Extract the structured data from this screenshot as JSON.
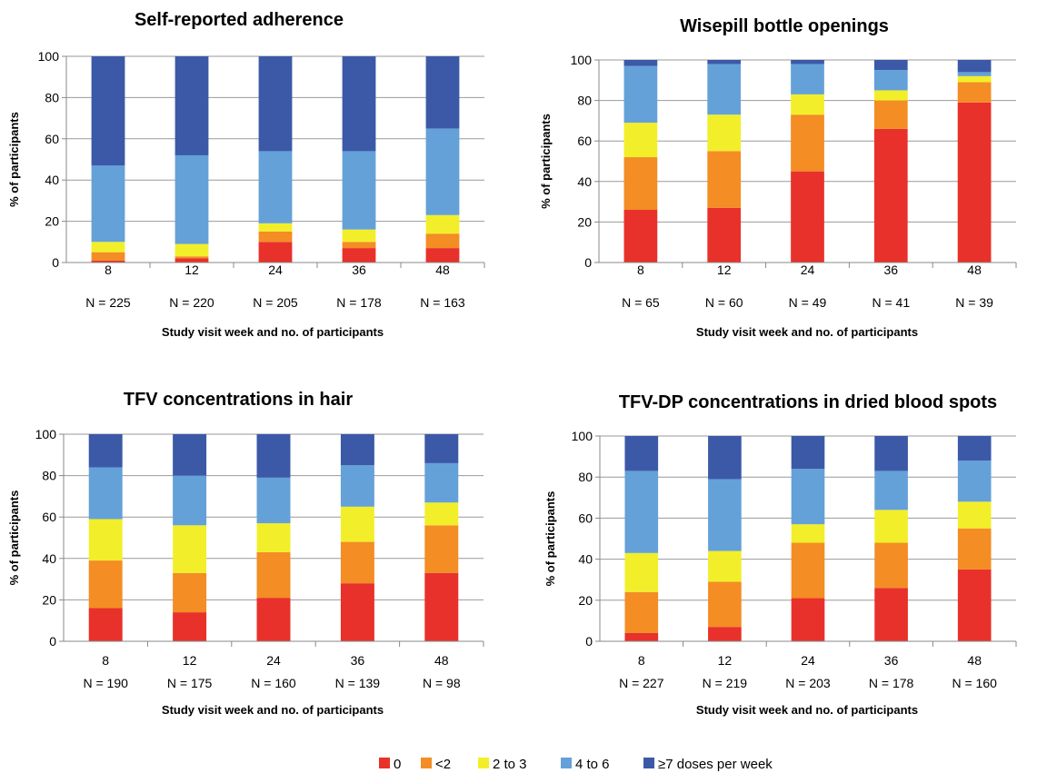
{
  "colors": {
    "0": "#e8312a",
    "<2": "#f38d24",
    "2 to 3": "#f2ef2a",
    "4 to 6": "#64a1d8",
    "≥7 doses per week": "#3c59a8"
  },
  "legend": [
    "0",
    "<2",
    "2 to 3",
    "4 to 6",
    "≥7 doses per week"
  ],
  "chart_data": [
    {
      "type": "bar",
      "stacked": true,
      "title": "Self-reported adherence",
      "xlabel": "Study visit week and no. of participants",
      "ylabel": "% of participants",
      "ylim": [
        0,
        100
      ],
      "yticks": [
        0,
        20,
        40,
        60,
        80,
        100
      ],
      "categories": [
        "8",
        "12",
        "24",
        "36",
        "48"
      ],
      "n_labels": [
        "N = 225",
        "N = 220",
        "N = 205",
        "N = 178",
        "N = 163"
      ],
      "series": [
        {
          "name": "0",
          "values": [
            1,
            2,
            10,
            7,
            7
          ]
        },
        {
          "name": "<2",
          "values": [
            4,
            1,
            5,
            3,
            7
          ]
        },
        {
          "name": "2 to 3",
          "values": [
            5,
            6,
            4,
            6,
            9
          ]
        },
        {
          "name": "4 to 6",
          "values": [
            37,
            43,
            35,
            38,
            42
          ]
        },
        {
          "name": "≥7 doses per week",
          "values": [
            53,
            48,
            46,
            46,
            35
          ]
        }
      ]
    },
    {
      "type": "bar",
      "stacked": true,
      "title": "Wisepill bottle openings",
      "xlabel": "Study visit week and no. of participants",
      "ylabel": "% of participants",
      "ylim": [
        0,
        100
      ],
      "yticks": [
        0,
        20,
        40,
        60,
        80,
        100
      ],
      "categories": [
        "8",
        "12",
        "24",
        "36",
        "48"
      ],
      "n_labels": [
        "N = 65",
        "N = 60",
        "N = 49",
        "N = 41",
        "N = 39"
      ],
      "series": [
        {
          "name": "0",
          "values": [
            26,
            27,
            45,
            66,
            79
          ]
        },
        {
          "name": "<2",
          "values": [
            26,
            28,
            28,
            14,
            10
          ]
        },
        {
          "name": "2 to 3",
          "values": [
            17,
            18,
            10,
            5,
            3
          ]
        },
        {
          "name": "4 to 6",
          "values": [
            28,
            25,
            15,
            10,
            2
          ]
        },
        {
          "name": "≥7 doses per week",
          "values": [
            3,
            2,
            2,
            5,
            6
          ]
        }
      ]
    },
    {
      "type": "bar",
      "stacked": true,
      "title": "TFV concentrations in hair",
      "xlabel": "Study visit week and no. of participants",
      "ylabel": "% of participants",
      "ylim": [
        0,
        100
      ],
      "yticks": [
        0,
        20,
        40,
        60,
        80,
        100
      ],
      "categories": [
        "8",
        "12",
        "24",
        "36",
        "48"
      ],
      "n_labels": [
        "N = 190",
        "N = 175",
        "N = 160",
        "N = 139",
        "N = 98"
      ],
      "series": [
        {
          "name": "0",
          "values": [
            16,
            14,
            21,
            28,
            33
          ]
        },
        {
          "name": "<2",
          "values": [
            23,
            19,
            22,
            20,
            23
          ]
        },
        {
          "name": "2 to 3",
          "values": [
            20,
            23,
            14,
            17,
            11
          ]
        },
        {
          "name": "4 to 6",
          "values": [
            25,
            24,
            22,
            20,
            19
          ]
        },
        {
          "name": "≥7 doses per week",
          "values": [
            16,
            20,
            21,
            15,
            14
          ]
        }
      ]
    },
    {
      "type": "bar",
      "stacked": true,
      "title": "TFV-DP concentrations in dried blood spots",
      "xlabel": "Study visit week and no. of participants",
      "ylabel": "% of participants",
      "ylim": [
        0,
        100
      ],
      "yticks": [
        0,
        20,
        40,
        60,
        80,
        100
      ],
      "categories": [
        "8",
        "12",
        "24",
        "36",
        "48"
      ],
      "n_labels": [
        "N = 227",
        "N = 219",
        "N = 203",
        "N = 178",
        "N = 160"
      ],
      "series": [
        {
          "name": "0",
          "values": [
            4,
            7,
            21,
            26,
            35
          ]
        },
        {
          "name": "<2",
          "values": [
            20,
            22,
            27,
            22,
            20
          ]
        },
        {
          "name": "2 to 3",
          "values": [
            19,
            15,
            9,
            16,
            13
          ]
        },
        {
          "name": "4 to 6",
          "values": [
            40,
            35,
            27,
            19,
            20
          ]
        },
        {
          "name": "≥7 doses per week",
          "values": [
            17,
            21,
            16,
            17,
            12
          ]
        }
      ]
    }
  ]
}
